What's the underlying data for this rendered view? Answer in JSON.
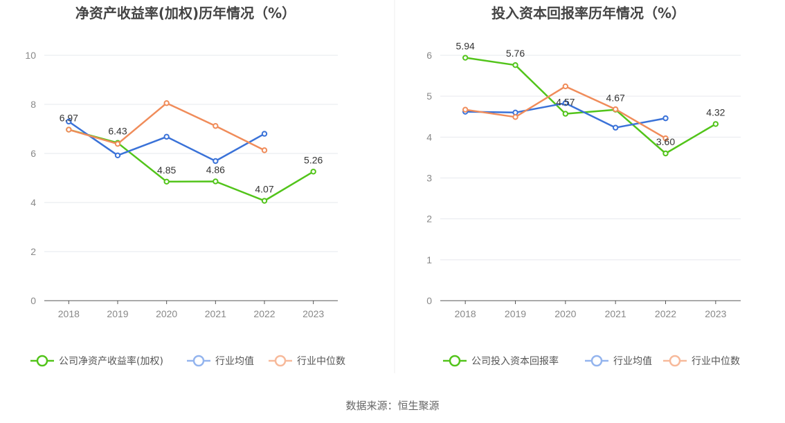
{
  "chart_data": [
    {
      "type": "line",
      "title": "净资产收益率(加权)历年情况（%）",
      "categories": [
        "2018",
        "2019",
        "2020",
        "2021",
        "2022",
        "2023"
      ],
      "ylim": [
        0,
        10
      ],
      "yticks": [
        0,
        2,
        4,
        6,
        8,
        10
      ],
      "grid": true,
      "legend_placement": "bottom",
      "series": [
        {
          "name": "公司净资产收益率(加权)",
          "color": "#52c41a",
          "values": [
            6.97,
            6.43,
            4.85,
            4.86,
            4.07,
            5.26
          ],
          "labeled": true
        },
        {
          "name": "行业均值",
          "color": "#3a72d8",
          "values": [
            7.3,
            5.92,
            6.68,
            5.69,
            6.8,
            null
          ],
          "labeled": false
        },
        {
          "name": "行业中位数",
          "color": "#f08c5a",
          "values": [
            6.97,
            6.39,
            8.05,
            7.12,
            6.13,
            null
          ],
          "labeled": false
        }
      ]
    },
    {
      "type": "line",
      "title": "投入资本回报率历年情况（%）",
      "categories": [
        "2018",
        "2019",
        "2020",
        "2021",
        "2022",
        "2023"
      ],
      "ylim": [
        0,
        6
      ],
      "yticks": [
        0,
        1,
        2,
        3,
        4,
        5,
        6
      ],
      "grid": true,
      "legend_placement": "bottom",
      "series": [
        {
          "name": "公司投入资本回报率",
          "color": "#52c41a",
          "values": [
            5.94,
            5.76,
            4.57,
            4.67,
            3.6,
            4.32
          ],
          "labeled": true
        },
        {
          "name": "行业均值",
          "color": "#3a72d8",
          "values": [
            4.62,
            4.6,
            4.83,
            4.23,
            4.46,
            null
          ],
          "labeled": false
        },
        {
          "name": "行业中位数",
          "color": "#f08c5a",
          "values": [
            4.67,
            4.49,
            5.24,
            4.68,
            3.97,
            null
          ],
          "labeled": false
        }
      ]
    }
  ],
  "footer": {
    "source": "数据来源：恒生聚源"
  }
}
